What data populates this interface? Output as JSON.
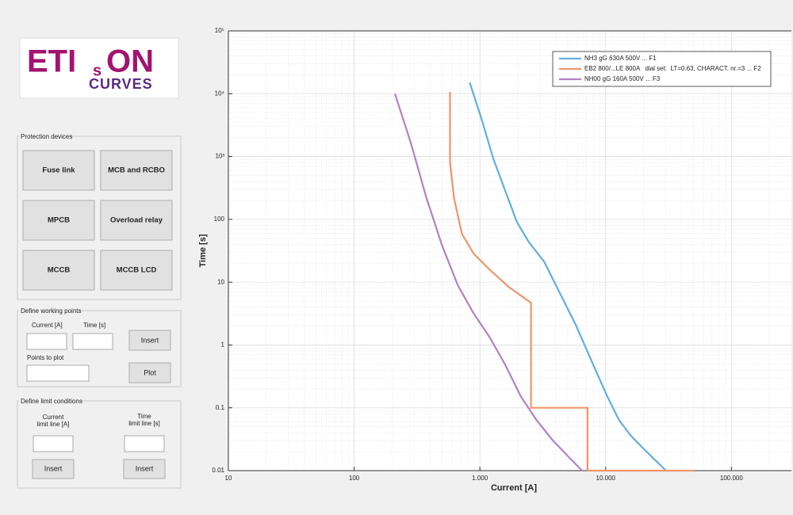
{
  "logo": {
    "eti": "ETI",
    "s": "s",
    "on": "ON",
    "curves": "CURVES"
  },
  "protection_devices": {
    "title": "Protection devices",
    "buttons": [
      "Fuse link",
      "MCB and RCBO",
      "MPCB",
      "Overload relay",
      "MCCB",
      "MCCB LCD"
    ]
  },
  "working_points": {
    "title": "Define working points",
    "current_label": "Current [A]",
    "time_label": "Time [s]",
    "insert": "Insert",
    "points_label": "Points to plot",
    "plot": "Plot"
  },
  "limit_conditions": {
    "title": "Define limit conditions",
    "current_label": [
      "Current",
      "limit line [A]"
    ],
    "time_label": [
      "Time",
      "limit line [s]"
    ],
    "insert_current": "Insert",
    "insert_time": "Insert"
  },
  "chart_data": {
    "type": "line",
    "xlabel": "Current [A]",
    "ylabel": "Time [s]",
    "x_scale": "log",
    "y_scale": "log",
    "grid": true,
    "minor_grid": true,
    "legend": "top-right",
    "xlim": [
      10,
      300000
    ],
    "ylim": [
      0.01,
      100000
    ],
    "xticks": [
      10,
      100,
      {
        "value": 1000,
        "label": "1.000"
      },
      {
        "value": 10000,
        "label": "10.000"
      },
      {
        "value": 100000,
        "label": "100.000"
      }
    ],
    "yticks": [
      0.01,
      0.1,
      1,
      10,
      100,
      {
        "value": 1000,
        "label": "10³"
      },
      {
        "value": 10000,
        "label": "10⁴"
      },
      {
        "value": 100000,
        "label": "10⁵"
      }
    ],
    "series": [
      {
        "name": "NH3 gG 630A 500V ... F1",
        "color": "#62aee0",
        "x": [
          830,
          1030,
          1277,
          1585,
          1968,
          2441,
          3254,
          4340,
          5786,
          7717,
          10290,
          12770,
          15850,
          21130,
          30200
        ],
        "values": [
          15100,
          3980,
          933,
          290,
          91,
          44,
          21,
          6.6,
          2.09,
          0.56,
          0.153,
          0.064,
          0.036,
          0.02,
          0.01
        ]
      },
      {
        "name": "EB2 800/...LE 800A   dial set:  LT=0.63, CHARACT. nr.=3 ... F2",
        "color": "#f0956a",
        "x": [
          579,
          579,
          622,
          718,
          891,
          1189,
          1692,
          2547,
          2547,
          7180,
          7180,
          50100
        ],
        "values": [
          10700,
          800,
          219,
          59,
          28.5,
          16,
          8.4,
          4.7,
          0.1,
          0.1,
          0.01,
          0.01
        ]
      },
      {
        "name": "NH00 gG 160A 500V ... F3",
        "color": "#b57fc8",
        "x": [
          211,
          282,
          376,
          501,
          668,
          891,
          1189,
          1585,
          2113,
          2818,
          3760,
          5010,
          6490
        ],
        "values": [
          10000,
          1660,
          219,
          38,
          8.9,
          3.2,
          1.35,
          0.49,
          0.153,
          0.064,
          0.031,
          0.017,
          0.01
        ]
      }
    ]
  }
}
